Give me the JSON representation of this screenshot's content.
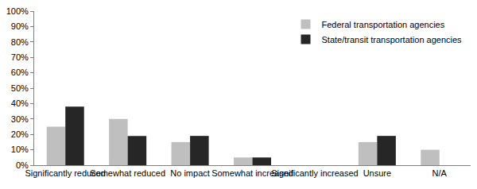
{
  "chart_data": {
    "type": "bar",
    "categories": [
      "Significantly reduced",
      "Somewhat reduced",
      "No impact",
      "Somewhat increased",
      "Significantly increased",
      "Unsure",
      "N/A"
    ],
    "series": [
      {
        "name": "Federal transportation agencies",
        "color": "#bfbfbf",
        "values": [
          25,
          30,
          15,
          5,
          0,
          15,
          10
        ]
      },
      {
        "name": "State/transit transportation agencies",
        "color": "#262626",
        "values": [
          38,
          19,
          19,
          5,
          0,
          19,
          0
        ]
      }
    ],
    "ylim": [
      0,
      100
    ],
    "yticks": [
      {
        "value": 0,
        "label": "0%"
      },
      {
        "value": 10,
        "label": "10%"
      },
      {
        "value": 20,
        "label": "20%"
      },
      {
        "value": 30,
        "label": "30%"
      },
      {
        "value": 40,
        "label": "40%"
      },
      {
        "value": 50,
        "label": "50%"
      },
      {
        "value": 60,
        "label": "60%"
      },
      {
        "value": 70,
        "label": "70%"
      },
      {
        "value": 80,
        "label": "80%"
      },
      {
        "value": 90,
        "label": "90%"
      },
      {
        "value": 100,
        "label": "100%"
      }
    ],
    "grid": false,
    "legend": "top right"
  }
}
